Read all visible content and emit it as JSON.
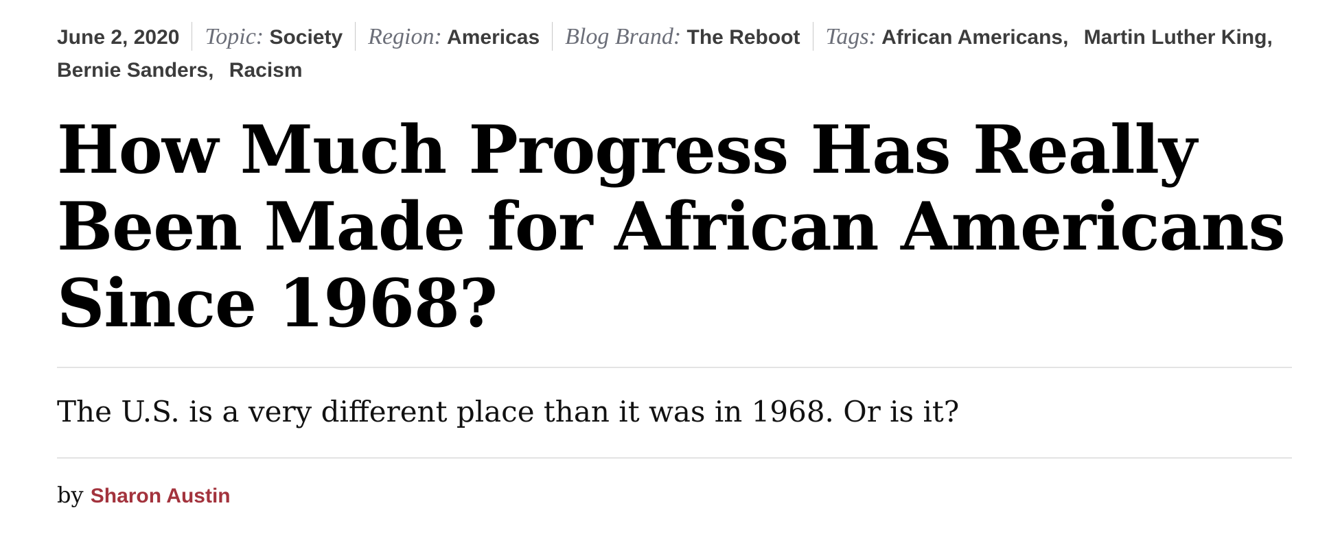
{
  "meta": {
    "date": "June 2, 2020",
    "topic_label": "Topic:",
    "topic": "Society",
    "region_label": "Region:",
    "region": "Americas",
    "brand_label": "Blog Brand:",
    "brand": "The Reboot",
    "tags_label": "Tags:",
    "tags": [
      "African Americans,",
      "Martin Luther King,",
      "Bernie Sanders,",
      "Racism"
    ]
  },
  "article": {
    "title": "How Much Progress Has Really Been Made for African Americans Since 1968?",
    "subtitle": "The U.S. is a very different place than it was in 1968. Or is it?",
    "by_label": "by",
    "author": "Sharon Austin",
    "author_color": "#a3333d"
  }
}
